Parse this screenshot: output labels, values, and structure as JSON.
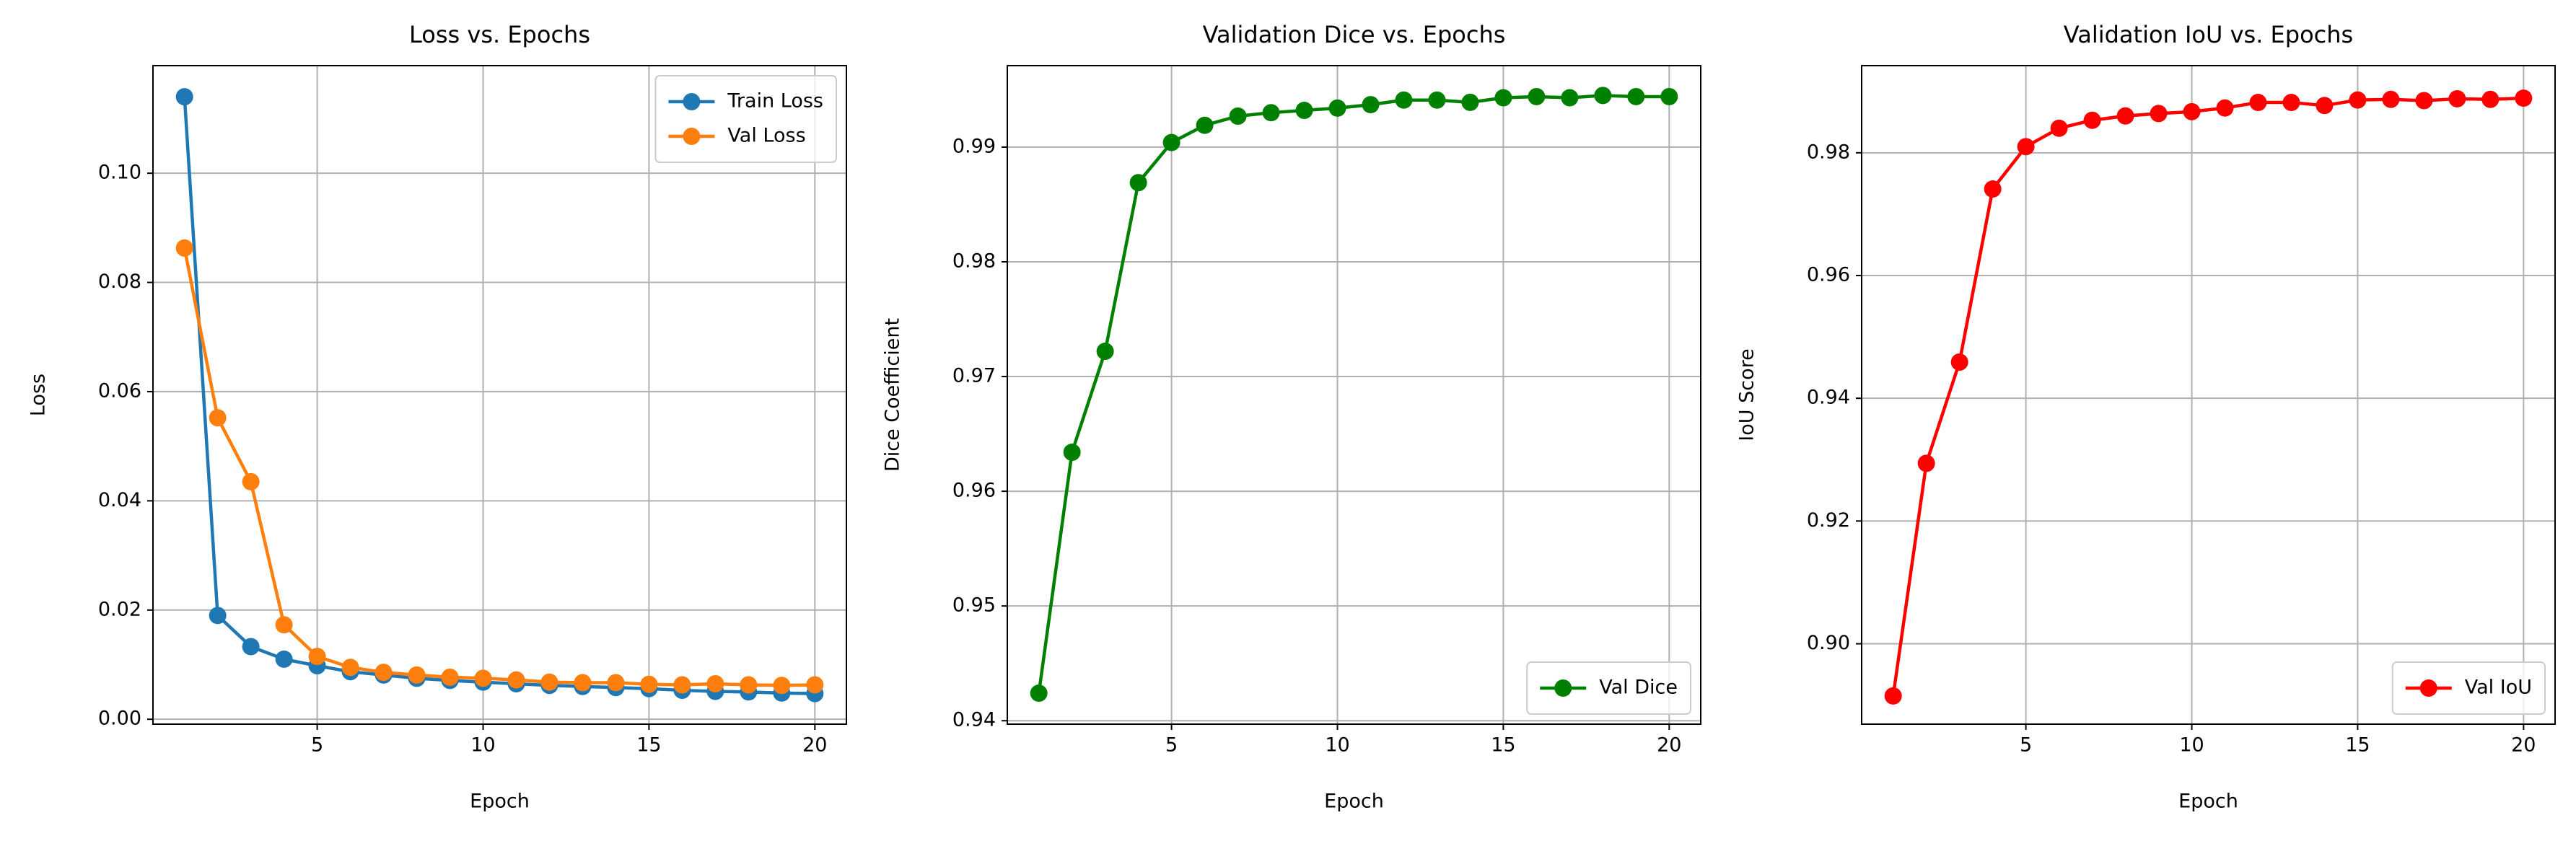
{
  "chart_data": [
    {
      "type": "line",
      "title": "Loss vs. Epochs",
      "xlabel": "Epoch",
      "ylabel": "Loss",
      "x": [
        1,
        2,
        3,
        4,
        5,
        6,
        7,
        8,
        9,
        10,
        11,
        12,
        13,
        14,
        15,
        16,
        17,
        18,
        19,
        20
      ],
      "series": [
        {
          "name": "Train Loss",
          "color": "#1f77b4",
          "values": [
            0.114,
            0.019,
            0.0133,
            0.011,
            0.0098,
            0.0087,
            0.0081,
            0.0075,
            0.0071,
            0.0068,
            0.0065,
            0.0062,
            0.006,
            0.0058,
            0.0056,
            0.0053,
            0.0051,
            0.005,
            0.0048,
            0.0047
          ]
        },
        {
          "name": "Val Loss",
          "color": "#ff7f0e",
          "values": [
            0.0863,
            0.0552,
            0.0435,
            0.0173,
            0.0115,
            0.0095,
            0.0086,
            0.0081,
            0.0077,
            0.0075,
            0.0072,
            0.0068,
            0.0067,
            0.0067,
            0.0064,
            0.0063,
            0.0065,
            0.0063,
            0.0062,
            0.0063
          ]
        }
      ],
      "xlim": [
        0.05,
        20.95
      ],
      "xticks": [
        5,
        10,
        15,
        20
      ],
      "ylim": [
        -0.0009,
        0.1197
      ],
      "yticks": [
        {
          "value": 0,
          "label": "0.00"
        },
        0.02,
        0.04,
        0.06,
        0.08,
        {
          "value": 0.1,
          "label": "0.10"
        }
      ],
      "grid": true,
      "legend": "upper right"
    },
    {
      "type": "line",
      "title": "Validation Dice vs. Epochs",
      "xlabel": "Epoch",
      "ylabel": "Dice Coefficient",
      "x": [
        1,
        2,
        3,
        4,
        5,
        6,
        7,
        8,
        9,
        10,
        11,
        12,
        13,
        14,
        15,
        16,
        17,
        18,
        19,
        20
      ],
      "series": [
        {
          "name": "Val Dice",
          "color": "#008000",
          "values": [
            0.9424,
            0.9634,
            0.9722,
            0.9869,
            0.9904,
            0.9919,
            0.9927,
            0.993,
            0.9932,
            0.9934,
            0.9937,
            0.9941,
            0.9941,
            0.9939,
            0.9943,
            0.9944,
            0.9943,
            0.9945,
            0.9944,
            0.9944
          ]
        }
      ],
      "xlim": [
        0.05,
        20.95
      ],
      "xticks": [
        5,
        10,
        15,
        20
      ],
      "ylim": [
        0.9397,
        0.9971
      ],
      "yticks": [
        0.94,
        0.95,
        0.96,
        0.97,
        0.98,
        0.99
      ],
      "grid": true,
      "legend": "lower right"
    },
    {
      "type": "line",
      "title": "Validation IoU vs. Epochs",
      "xlabel": "Epoch",
      "ylabel": "IoU Score",
      "x": [
        1,
        2,
        3,
        4,
        5,
        6,
        7,
        8,
        9,
        10,
        11,
        12,
        13,
        14,
        15,
        16,
        17,
        18,
        19,
        20
      ],
      "series": [
        {
          "name": "Val IoU",
          "color": "#ff0000",
          "values": [
            0.8915,
            0.9294,
            0.9459,
            0.9741,
            0.981,
            0.984,
            0.9853,
            0.986,
            0.9864,
            0.9867,
            0.9873,
            0.9882,
            0.9882,
            0.9877,
            0.9886,
            0.9887,
            0.9885,
            0.9888,
            0.9887,
            0.9889
          ]
        }
      ],
      "xlim": [
        0.05,
        20.95
      ],
      "xticks": [
        5,
        10,
        15,
        20
      ],
      "ylim": [
        0.8869,
        0.9942
      ],
      "yticks": [
        {
          "value": 0.9,
          "label": "0.90"
        },
        0.92,
        0.94,
        0.96,
        0.98
      ],
      "grid": true,
      "legend": "lower right"
    }
  ]
}
